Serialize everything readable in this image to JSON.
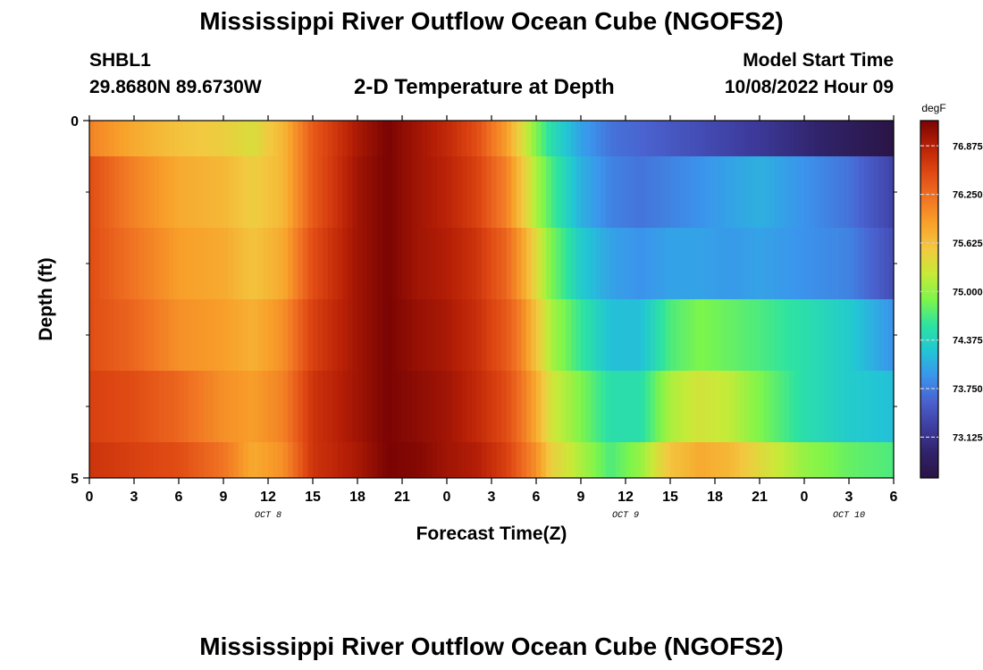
{
  "header": {
    "title": "Mississippi River Outflow Ocean Cube (NGOFS2)",
    "station_id": "SHBL1",
    "station_coords": "29.8680N  89.6730W",
    "plot_title": "2-D Temperature at Depth",
    "start_label": "Model Start Time",
    "start_value": "10/08/2022 Hour 09"
  },
  "footer": {
    "title": "Mississippi River Outflow Ocean Cube (NGOFS2)"
  },
  "chart_data": {
    "type": "heatmap",
    "title": "2-D Temperature at Depth",
    "xlabel": "Forecast Time(Z)",
    "ylabel": "Depth (ft)",
    "units": "degF",
    "x_range_hours": [
      0,
      54
    ],
    "x_ticks": [
      {
        "hour": 0,
        "label": "0"
      },
      {
        "hour": 3,
        "label": "3"
      },
      {
        "hour": 6,
        "label": "6"
      },
      {
        "hour": 9,
        "label": "9"
      },
      {
        "hour": 12,
        "label": "12"
      },
      {
        "hour": 15,
        "label": "15"
      },
      {
        "hour": 18,
        "label": "18"
      },
      {
        "hour": 21,
        "label": "21"
      },
      {
        "hour": 24,
        "label": "0"
      },
      {
        "hour": 27,
        "label": "3"
      },
      {
        "hour": 30,
        "label": "6"
      },
      {
        "hour": 33,
        "label": "9"
      },
      {
        "hour": 36,
        "label": "12"
      },
      {
        "hour": 39,
        "label": "15"
      },
      {
        "hour": 42,
        "label": "18"
      },
      {
        "hour": 45,
        "label": "21"
      },
      {
        "hour": 48,
        "label": "0"
      },
      {
        "hour": 51,
        "label": "3"
      },
      {
        "hour": 54,
        "label": "6"
      }
    ],
    "day_labels": [
      {
        "hour": 12,
        "label": "OCT 8"
      },
      {
        "hour": 36,
        "label": "OCT 9"
      },
      {
        "hour": 51,
        "label": "OCT 10"
      }
    ],
    "y_range": [
      0,
      5
    ],
    "y_tick_labels": [
      {
        "value": 0,
        "label": "0"
      },
      {
        "value": 5,
        "label": "5"
      }
    ],
    "y_minor_ticks": [
      1,
      2,
      3,
      4
    ],
    "depth_bands": [
      [
        0,
        0.5
      ],
      [
        0.5,
        1.5
      ],
      [
        1.5,
        2.5
      ],
      [
        2.5,
        3.5
      ],
      [
        3.5,
        4.5
      ],
      [
        4.5,
        5
      ]
    ],
    "colorbar": {
      "min": 72.6,
      "max": 77.2,
      "ticks": [
        73.125,
        73.75,
        74.375,
        75.0,
        75.625,
        76.25,
        76.875
      ],
      "tick_labels": [
        "73.125",
        "73.750",
        "74.375",
        "75.000",
        "75.625",
        "76.250",
        "76.875"
      ],
      "colors": [
        "#2a1445",
        "#30236a",
        "#3e3da0",
        "#4a62cf",
        "#3b95ec",
        "#22c6d4",
        "#2ee3a0",
        "#7ef54a",
        "#c8ea38",
        "#f3c840",
        "#f8a02a",
        "#f07223",
        "#de4712",
        "#b82006",
        "#7a0403"
      ]
    },
    "temperature_keyframes": [
      {
        "hour": 0,
        "values": [
          76.1,
          76.5,
          76.5,
          76.5,
          76.6,
          76.7
        ]
      },
      {
        "hour": 3,
        "values": [
          75.8,
          76.1,
          76.2,
          76.3,
          76.5,
          76.6
        ]
      },
      {
        "hour": 6,
        "values": [
          75.6,
          75.8,
          75.9,
          76.0,
          76.3,
          76.5
        ]
      },
      {
        "hour": 9,
        "values": [
          75.5,
          75.7,
          75.8,
          75.9,
          76.0,
          76.2
        ]
      },
      {
        "hour": 11,
        "values": [
          75.35,
          75.5,
          75.6,
          75.75,
          75.9,
          75.8
        ]
      },
      {
        "hour": 13,
        "values": [
          75.7,
          75.7,
          75.8,
          76.0,
          76.1,
          76.0
        ]
      },
      {
        "hour": 15,
        "values": [
          76.4,
          76.4,
          76.5,
          76.6,
          76.7,
          76.7
        ]
      },
      {
        "hour": 18,
        "values": [
          76.95,
          77.0,
          77.0,
          77.0,
          77.0,
          76.95
        ]
      },
      {
        "hour": 20,
        "values": [
          77.2,
          77.2,
          77.2,
          77.2,
          77.2,
          77.2
        ]
      },
      {
        "hour": 22,
        "values": [
          77.0,
          77.0,
          77.0,
          77.05,
          77.1,
          77.15
        ]
      },
      {
        "hour": 24,
        "values": [
          76.8,
          76.85,
          76.9,
          76.95,
          77.0,
          77.0
        ]
      },
      {
        "hour": 26,
        "values": [
          76.5,
          76.6,
          76.7,
          76.75,
          76.8,
          76.9
        ]
      },
      {
        "hour": 28,
        "values": [
          75.9,
          76.1,
          76.3,
          76.4,
          76.5,
          76.6
        ]
      },
      {
        "hour": 29,
        "values": [
          75.4,
          75.6,
          75.9,
          76.1,
          76.2,
          76.3
        ]
      },
      {
        "hour": 30,
        "values": [
          74.9,
          75.1,
          75.4,
          75.6,
          75.8,
          76.0
        ]
      },
      {
        "hour": 31,
        "values": [
          74.5,
          74.7,
          74.9,
          75.1,
          75.3,
          75.5
        ]
      },
      {
        "hour": 33,
        "values": [
          74.0,
          74.1,
          74.3,
          74.6,
          74.9,
          75.1
        ]
      },
      {
        "hour": 35,
        "values": [
          73.7,
          73.8,
          74.0,
          74.2,
          74.5,
          74.7
        ]
      },
      {
        "hour": 37,
        "values": [
          73.6,
          73.7,
          73.9,
          74.2,
          74.5,
          75.0
        ]
      },
      {
        "hour": 39,
        "values": [
          73.5,
          73.8,
          74.0,
          74.7,
          75.1,
          75.6
        ]
      },
      {
        "hour": 41,
        "values": [
          73.4,
          73.9,
          74.0,
          74.9,
          75.3,
          75.8
        ]
      },
      {
        "hour": 43,
        "values": [
          73.3,
          74.0,
          73.95,
          74.8,
          75.2,
          75.7
        ]
      },
      {
        "hour": 45,
        "values": [
          73.2,
          74.1,
          74.0,
          74.7,
          74.9,
          75.4
        ]
      },
      {
        "hour": 48,
        "values": [
          73.0,
          73.9,
          73.9,
          74.5,
          74.5,
          75.0
        ]
      },
      {
        "hour": 51,
        "values": [
          72.8,
          73.7,
          73.8,
          74.3,
          74.3,
          74.8
        ]
      },
      {
        "hour": 54,
        "values": [
          72.6,
          73.3,
          73.4,
          73.9,
          74.2,
          74.7
        ]
      }
    ]
  }
}
